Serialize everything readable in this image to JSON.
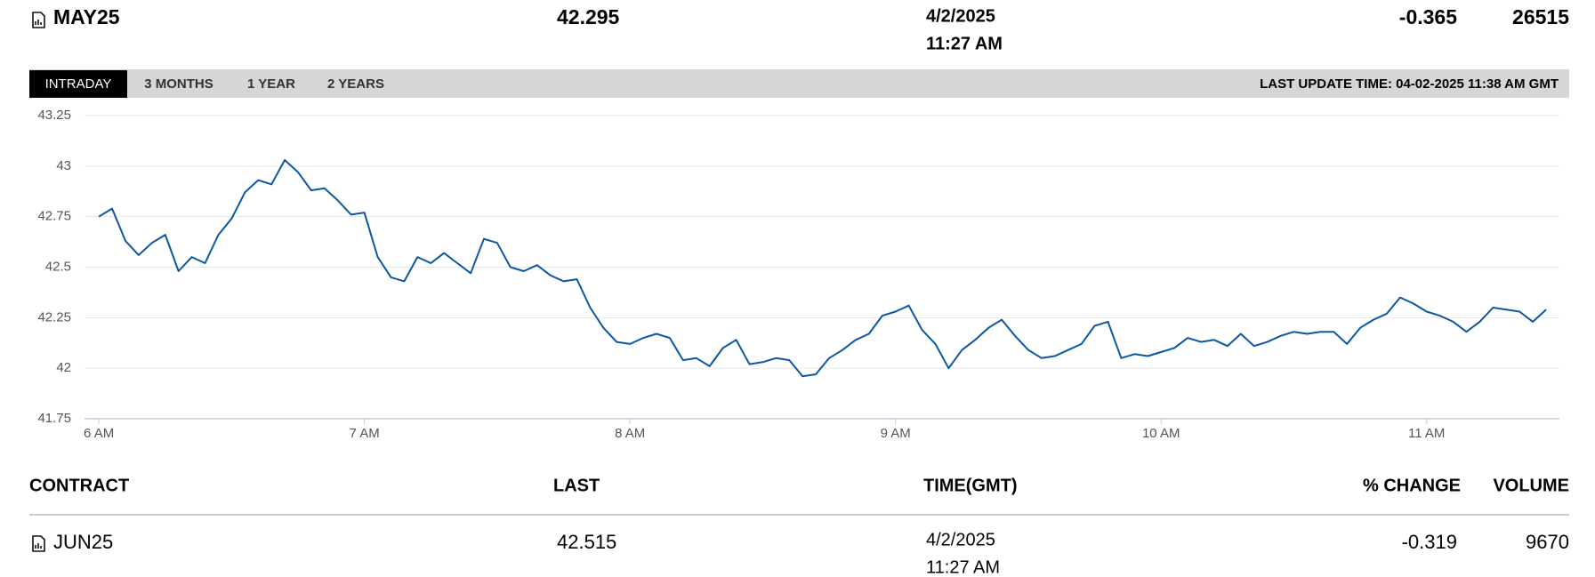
{
  "header": {
    "symbol": "MAY25",
    "last": "42.295",
    "date": "4/2/2025",
    "time": "11:27 AM",
    "change": "-0.365",
    "volume": "26515"
  },
  "tabs": [
    "INTRADAY",
    "3 MONTHS",
    "1 YEAR",
    "2 YEARS"
  ],
  "last_update": "LAST UPDATE TIME: 04-02-2025 11:38 AM GMT",
  "chart_data": {
    "type": "line",
    "color": "#0b57a4",
    "grid": true,
    "x": [
      6,
      6.05,
      6.1,
      6.15,
      6.2,
      6.25,
      6.3,
      6.35,
      6.4,
      6.45,
      6.5,
      6.55,
      6.6,
      6.65,
      6.7,
      6.75,
      6.8,
      6.85,
      6.9,
      6.95,
      7,
      7.05,
      7.1,
      7.15,
      7.2,
      7.25,
      7.3,
      7.35,
      7.4,
      7.45,
      7.5,
      7.55,
      7.6,
      7.65,
      7.7,
      7.75,
      7.8,
      7.85,
      7.9,
      7.95,
      8,
      8.05,
      8.1,
      8.15,
      8.2,
      8.25,
      8.3,
      8.35,
      8.4,
      8.45,
      8.5,
      8.55,
      8.6,
      8.65,
      8.7,
      8.75,
      8.8,
      8.85,
      8.9,
      8.95,
      9,
      9.05,
      9.1,
      9.15,
      9.2,
      9.25,
      9.3,
      9.35,
      9.4,
      9.45,
      9.5,
      9.55,
      9.6,
      9.65,
      9.7,
      9.75,
      9.8,
      9.85,
      9.9,
      9.95,
      10,
      10.05,
      10.1,
      10.15,
      10.2,
      10.25,
      10.3,
      10.35,
      10.4,
      10.45,
      10.5,
      10.55,
      10.6,
      10.65,
      10.7,
      10.75,
      10.8,
      10.85,
      10.9,
      10.95,
      11,
      11.05,
      11.1,
      11.15,
      11.2,
      11.25,
      11.3,
      11.35,
      11.4,
      11.45
    ],
    "values": [
      42.75,
      42.79,
      42.63,
      42.56,
      42.62,
      42.66,
      42.48,
      42.55,
      42.52,
      42.66,
      42.74,
      42.87,
      42.93,
      42.91,
      43.03,
      42.97,
      42.88,
      42.89,
      42.83,
      42.76,
      42.77,
      42.55,
      42.45,
      42.43,
      42.55,
      42.52,
      42.57,
      42.52,
      42.47,
      42.64,
      42.62,
      42.5,
      42.48,
      42.51,
      42.46,
      42.43,
      42.44,
      42.3,
      42.2,
      42.13,
      42.12,
      42.15,
      42.17,
      42.15,
      42.04,
      42.05,
      42.01,
      42.1,
      42.14,
      42.02,
      42.03,
      42.05,
      42.04,
      41.96,
      41.97,
      42.05,
      42.09,
      42.14,
      42.17,
      42.26,
      42.28,
      42.31,
      42.19,
      42.12,
      42,
      42.09,
      42.14,
      42.2,
      42.24,
      42.16,
      42.09,
      42.05,
      42.06,
      42.09,
      42.12,
      42.21,
      42.23,
      42.05,
      42.07,
      42.06,
      42.08,
      42.1,
      42.15,
      42.13,
      42.14,
      42.11,
      42.17,
      42.11,
      42.13,
      42.16,
      42.18,
      42.17,
      42.18,
      42.18,
      42.12,
      42.2,
      42.24,
      42.27,
      42.35,
      42.32,
      42.28,
      42.26,
      42.23,
      42.18,
      42.23,
      42.3,
      42.29,
      42.28,
      42.23,
      42.29
    ],
    "xlim": [
      5.946,
      11.5
    ],
    "ylim": [
      41.75,
      43.25
    ],
    "xticks": [
      {
        "value": 6,
        "label": "6 AM"
      },
      {
        "value": 7,
        "label": "7 AM"
      },
      {
        "value": 8,
        "label": "8 AM"
      },
      {
        "value": 9,
        "label": "9 AM"
      },
      {
        "value": 10,
        "label": "10 AM"
      },
      {
        "value": 11,
        "label": "11 AM"
      }
    ],
    "yticks": [
      41.75,
      42,
      42.25,
      42.5,
      42.75,
      43,
      43.25
    ]
  },
  "table": {
    "columns": [
      "CONTRACT",
      "LAST",
      "TIME(GMT)",
      "% CHANGE",
      "VOLUME"
    ],
    "rows": [
      [
        "JUN25",
        "42.515",
        "4/2/2025",
        "11:27 AM",
        "-0.319",
        "9670"
      ]
    ]
  }
}
